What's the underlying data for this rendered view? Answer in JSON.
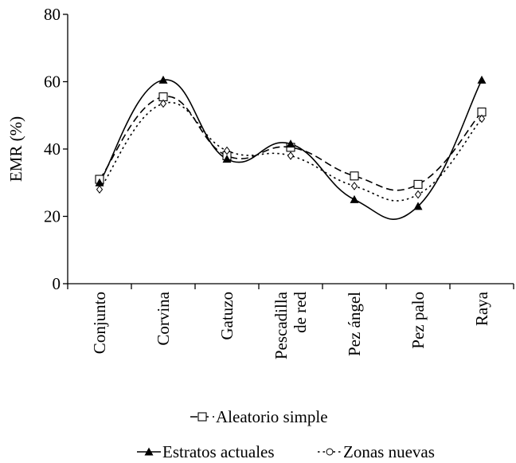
{
  "chart_data": {
    "type": "line",
    "ylabel": "EMR (%)",
    "ylim": [
      0,
      80
    ],
    "yticks": [
      0,
      20,
      40,
      60,
      80
    ],
    "grid": false,
    "legend_position": "bottom",
    "categories": [
      [
        "Conjunto"
      ],
      [
        "Corvina"
      ],
      [
        "Gatuzo"
      ],
      [
        "Pescadilla",
        "de red"
      ],
      [
        "Pez ángel"
      ],
      [
        "Pez palo"
      ],
      [
        "Raya"
      ]
    ],
    "series": [
      {
        "name": "Aleatorio simple",
        "marker": "square-open",
        "line": "dashed",
        "values": [
          31,
          55.5,
          38,
          40.5,
          32,
          29.5,
          51
        ]
      },
      {
        "name": "Estratos actuales",
        "marker": "triangle-filled",
        "line": "solid",
        "values": [
          30,
          60.5,
          37,
          41.5,
          25,
          23,
          60.5
        ]
      },
      {
        "name": "Zonas nuevas",
        "marker": "diamond-open",
        "line": "dotted",
        "values": [
          28,
          53.5,
          39.5,
          38,
          29,
          26.5,
          49
        ]
      }
    ]
  }
}
